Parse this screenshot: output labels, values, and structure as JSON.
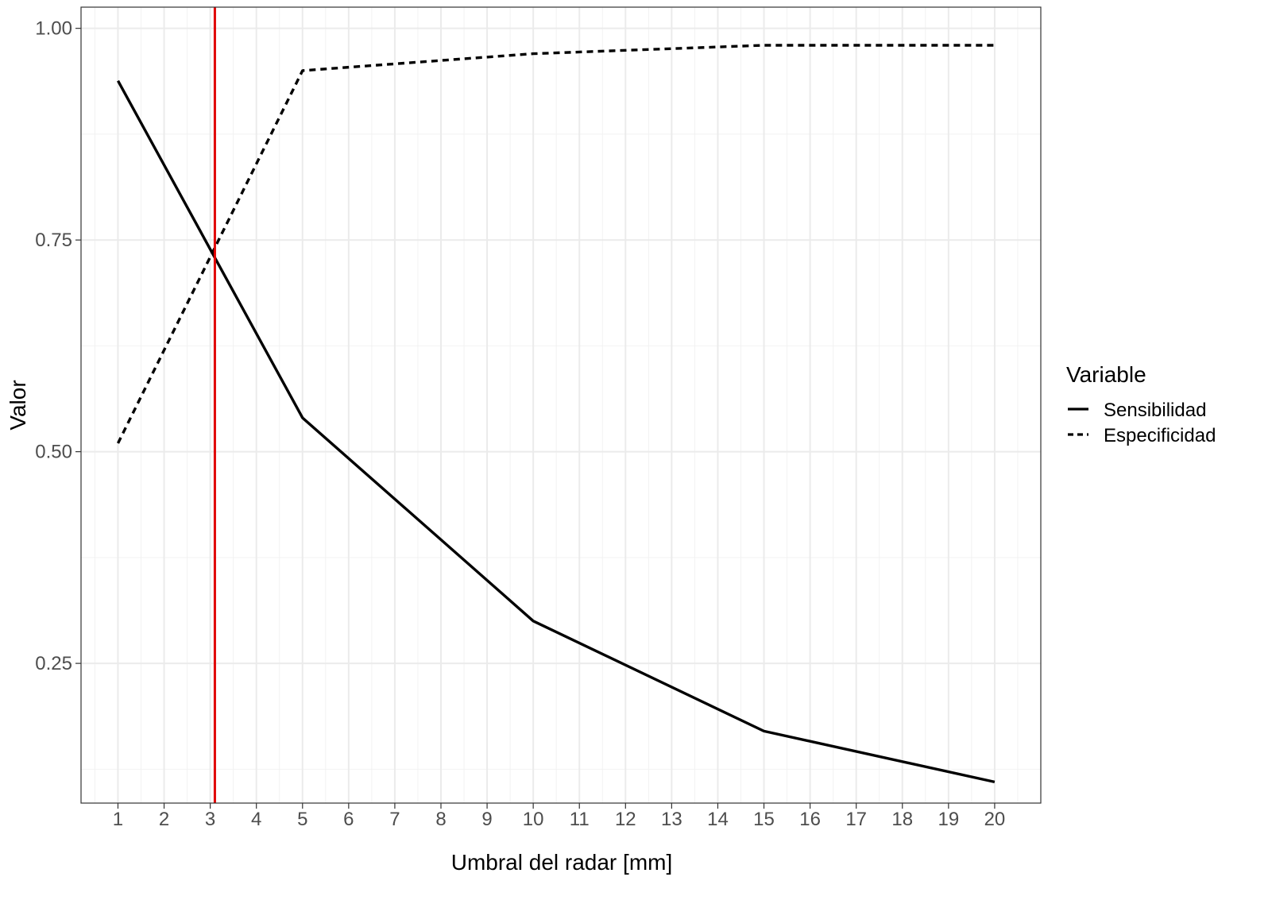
{
  "chart_data": {
    "type": "line",
    "title": "",
    "xlabel": "Umbral del radar [mm]",
    "ylabel": "Valor",
    "xlim": [
      0.2,
      21.0
    ],
    "ylim": [
      0.085,
      1.025
    ],
    "x_ticks": [
      1,
      2,
      3,
      4,
      5,
      6,
      7,
      8,
      9,
      10,
      11,
      12,
      13,
      14,
      15,
      16,
      17,
      18,
      19,
      20
    ],
    "x_tick_labels": [
      "1",
      "2",
      "3",
      "4",
      "5",
      "6",
      "7",
      "8",
      "9",
      "10",
      "11",
      "12",
      "13",
      "14",
      "15",
      "16",
      "17",
      "18",
      "19",
      "20"
    ],
    "y_ticks": [
      0.25,
      0.5,
      0.75,
      1.0
    ],
    "y_tick_labels": [
      "0.25",
      "0.50",
      "0.75",
      "1.00"
    ],
    "y_minor_ticks": [
      0.125,
      0.375,
      0.625,
      0.875
    ],
    "grid": true,
    "legend": {
      "title": "Variable",
      "placement": "right"
    },
    "series": [
      {
        "name": "Sensibilidad",
        "line_style": "solid",
        "color": "#000000",
        "x": [
          1,
          5,
          10,
          15,
          20
        ],
        "y": [
          0.938,
          0.54,
          0.3,
          0.17,
          0.11
        ]
      },
      {
        "name": "Especificidad",
        "line_style": "dashed",
        "color": "#000000",
        "x": [
          1,
          5,
          10,
          15,
          20
        ],
        "y": [
          0.51,
          0.95,
          0.97,
          0.98,
          0.98
        ]
      }
    ],
    "vertical_line": {
      "x": 3.1,
      "color": "#e00000"
    }
  }
}
